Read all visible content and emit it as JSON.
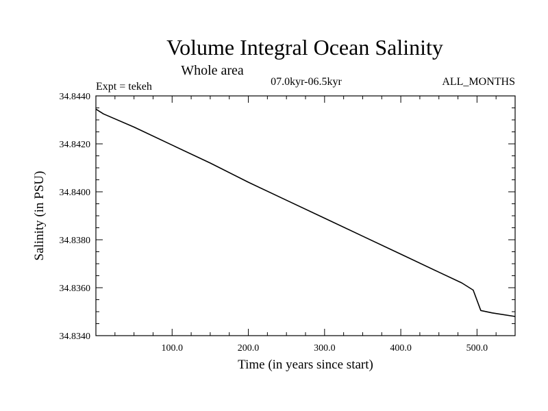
{
  "chart_data": {
    "type": "line",
    "title": "Volume Integral Ocean Salinity",
    "subtitle": "Whole area",
    "experiment_label": "Expt = tekeh",
    "period_label": "07.0kyr-06.5kyr",
    "months_label": "ALL_MONTHS",
    "xlabel": "Time (in years since start)",
    "ylabel": "Salinity (in PSU)",
    "xlim": [
      0,
      550
    ],
    "ylim": [
      34.834,
      34.844
    ],
    "x_tick_labels": [
      "100.0",
      "200.0",
      "300.0",
      "400.0",
      "500.0"
    ],
    "x_ticks": [
      100,
      200,
      300,
      400,
      500
    ],
    "y_tick_labels": [
      "34.8340",
      "34.8360",
      "34.8380",
      "34.8400",
      "34.8420",
      "34.8440"
    ],
    "y_ticks": [
      34.834,
      34.836,
      34.838,
      34.84,
      34.842,
      34.844
    ],
    "grid": false,
    "series": [
      {
        "name": "salinity",
        "x": [
          0,
          10,
          50,
          100,
          150,
          200,
          250,
          300,
          350,
          400,
          450,
          480,
          495,
          505,
          520,
          550
        ],
        "y": [
          34.84345,
          34.84325,
          34.8427,
          34.84195,
          34.8412,
          34.8404,
          34.83965,
          34.8389,
          34.83815,
          34.8374,
          34.83665,
          34.8362,
          34.8359,
          34.83505,
          34.83495,
          34.8348
        ]
      }
    ]
  }
}
